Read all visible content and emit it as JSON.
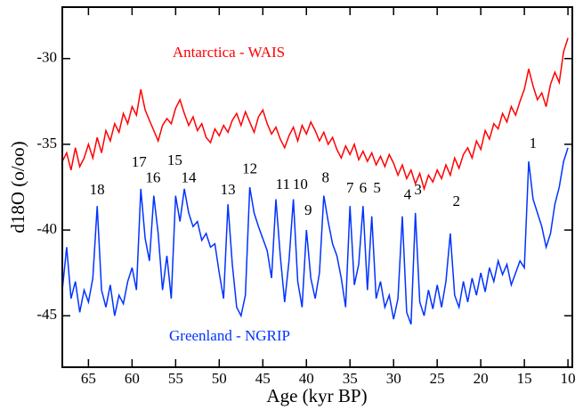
{
  "chart_data": {
    "type": "line",
    "x_label": "Age (kyr BP)",
    "y_label": "d18O (o/oo)",
    "xlim": [
      68,
      9.5
    ],
    "ylim": [
      -48,
      -27
    ],
    "xticks": [
      65,
      60,
      55,
      50,
      45,
      40,
      35,
      30,
      25,
      20,
      15,
      10
    ],
    "yticks": [
      -45,
      -40,
      -35,
      -30
    ],
    "x": [
      68,
      67.5,
      67,
      66.5,
      66,
      65.5,
      65,
      64.5,
      64,
      63.5,
      63,
      62.5,
      62,
      61.5,
      61,
      60.5,
      60,
      59.5,
      59,
      58.5,
      58,
      57.5,
      57,
      56.5,
      56,
      55.5,
      55,
      54.5,
      54,
      53.5,
      53,
      52.5,
      52,
      51.5,
      51,
      50.5,
      50,
      49.5,
      49,
      48.5,
      48,
      47.5,
      47,
      46.5,
      46,
      45.5,
      45,
      44.5,
      44,
      43.5,
      43,
      42.5,
      42,
      41.5,
      41,
      40.5,
      40,
      39.5,
      39,
      38.5,
      38,
      37.5,
      37,
      36.5,
      36,
      35.5,
      35,
      34.5,
      34,
      33.5,
      33,
      32.5,
      32,
      31.5,
      31,
      30.5,
      30,
      29.5,
      29,
      28.5,
      28,
      27.5,
      27,
      26.5,
      26,
      25.5,
      25,
      24.5,
      24,
      23.5,
      23,
      22.5,
      22,
      21.5,
      21,
      20.5,
      20,
      19.5,
      19,
      18.5,
      18,
      17.5,
      17,
      16.5,
      16,
      15.5,
      15,
      14.5,
      14,
      13.5,
      13,
      12.5,
      12,
      11.5,
      11,
      10.5,
      10
    ],
    "series": [
      {
        "name": "Antarctica - WAIS",
        "color": "#ff0000",
        "values": [
          -36.0,
          -35.5,
          -36.5,
          -35.2,
          -36.3,
          -35.8,
          -35.0,
          -35.8,
          -34.6,
          -35.5,
          -34.2,
          -34.8,
          -33.8,
          -34.3,
          -33.2,
          -33.8,
          -32.8,
          -33.3,
          -31.8,
          -33.0,
          -33.6,
          -34.2,
          -34.8,
          -33.9,
          -33.5,
          -33.8,
          -32.9,
          -32.4,
          -33.2,
          -33.9,
          -33.4,
          -34.2,
          -33.8,
          -34.6,
          -34.9,
          -34.1,
          -34.5,
          -33.9,
          -34.3,
          -33.6,
          -33.2,
          -33.9,
          -33.1,
          -33.7,
          -34.3,
          -33.4,
          -33.0,
          -33.8,
          -34.4,
          -34.0,
          -34.7,
          -35.2,
          -34.5,
          -34.0,
          -34.8,
          -33.9,
          -34.4,
          -33.7,
          -34.2,
          -34.8,
          -34.3,
          -35.0,
          -34.6,
          -35.3,
          -35.8,
          -35.1,
          -35.6,
          -35.0,
          -35.9,
          -35.4,
          -36.0,
          -35.5,
          -36.2,
          -35.7,
          -36.3,
          -35.6,
          -36.1,
          -36.8,
          -36.2,
          -37.0,
          -36.5,
          -37.3,
          -36.7,
          -37.6,
          -36.8,
          -37.2,
          -36.5,
          -37.0,
          -36.2,
          -36.8,
          -35.8,
          -36.4,
          -35.6,
          -35.2,
          -35.8,
          -34.8,
          -35.3,
          -34.2,
          -34.7,
          -33.8,
          -34.1,
          -33.2,
          -33.7,
          -32.8,
          -33.3,
          -32.5,
          -31.8,
          -30.6,
          -31.6,
          -32.4,
          -32.0,
          -32.8,
          -31.5,
          -30.8,
          -31.4,
          -29.6,
          -28.8
        ]
      },
      {
        "name": "Greenland - NGRIP",
        "color": "#0033ff",
        "values": [
          -43.5,
          -41.0,
          -44.0,
          -43.0,
          -44.8,
          -43.5,
          -44.2,
          -42.8,
          -38.6,
          -43.5,
          -44.5,
          -43.2,
          -45.0,
          -43.8,
          -44.3,
          -43.0,
          -42.2,
          -43.5,
          -37.6,
          -40.5,
          -41.8,
          -38.0,
          -40.2,
          -43.5,
          -41.5,
          -44.0,
          -38.0,
          -39.5,
          -37.6,
          -39.0,
          -39.8,
          -39.5,
          -40.6,
          -40.2,
          -41.0,
          -40.8,
          -42.5,
          -44.0,
          -38.5,
          -42.0,
          -44.5,
          -45.0,
          -43.8,
          -37.5,
          -39.0,
          -39.8,
          -40.5,
          -41.2,
          -42.8,
          -38.2,
          -41.5,
          -44.2,
          -41.8,
          -38.2,
          -43.0,
          -44.5,
          -40.0,
          -42.8,
          -44.0,
          -42.5,
          -38.0,
          -39.5,
          -40.8,
          -41.5,
          -42.8,
          -44.5,
          -38.6,
          -43.2,
          -42.0,
          -38.6,
          -43.5,
          -39.2,
          -44.0,
          -43.0,
          -44.5,
          -43.8,
          -45.2,
          -44.0,
          -39.2,
          -44.8,
          -45.5,
          -39.0,
          -44.2,
          -45.0,
          -43.5,
          -44.6,
          -43.2,
          -44.5,
          -43.0,
          -40.2,
          -43.8,
          -44.5,
          -43.0,
          -44.2,
          -42.8,
          -43.8,
          -42.5,
          -43.6,
          -42.2,
          -43.0,
          -41.8,
          -42.6,
          -42.0,
          -43.2,
          -42.5,
          -41.8,
          -42.2,
          -36.0,
          -38.2,
          -39.0,
          -39.8,
          -41.0,
          -40.2,
          -38.5,
          -37.5,
          -36.0,
          -35.2
        ]
      }
    ],
    "annotations": [
      {
        "text": "18",
        "x": 64.0,
        "y": -37.7
      },
      {
        "text": "17",
        "x": 59.2,
        "y": -36.1
      },
      {
        "text": "16",
        "x": 57.6,
        "y": -37.0
      },
      {
        "text": "15",
        "x": 55.1,
        "y": -36.0
      },
      {
        "text": "14",
        "x": 53.5,
        "y": -37.0
      },
      {
        "text": "13",
        "x": 49.0,
        "y": -37.7
      },
      {
        "text": "12",
        "x": 46.5,
        "y": -36.5
      },
      {
        "text": "11",
        "x": 42.7,
        "y": -37.4
      },
      {
        "text": "10",
        "x": 40.7,
        "y": -37.4
      },
      {
        "text": "9",
        "x": 39.8,
        "y": -38.9
      },
      {
        "text": "8",
        "x": 37.8,
        "y": -37.0
      },
      {
        "text": "7",
        "x": 35.0,
        "y": -37.6
      },
      {
        "text": "6",
        "x": 33.5,
        "y": -37.6
      },
      {
        "text": "5",
        "x": 31.9,
        "y": -37.6
      },
      {
        "text": "4",
        "x": 28.4,
        "y": -38.0
      },
      {
        "text": "3",
        "x": 27.2,
        "y": -37.7
      },
      {
        "text": "2",
        "x": 22.8,
        "y": -38.4
      },
      {
        "text": "1",
        "x": 14.0,
        "y": -35.0
      }
    ]
  }
}
